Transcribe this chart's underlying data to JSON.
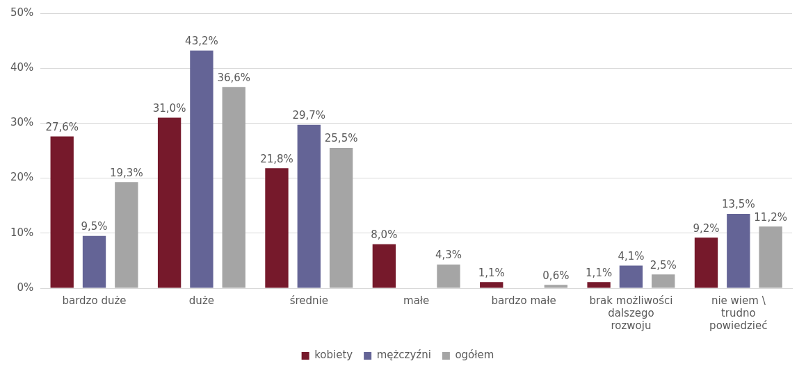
{
  "chart_data": {
    "type": "bar",
    "categories": [
      "bardzo duże",
      "duże",
      "średnie",
      "małe",
      "bardzo małe",
      "brak możliwości\ndalszego\nrozwoju",
      "nie wiem \\\ntrudno\npowiedzieć"
    ],
    "series": [
      {
        "name": "kobiety",
        "color": "#76192b",
        "values": [
          27.6,
          31.0,
          21.8,
          8.0,
          1.1,
          1.1,
          9.2
        ],
        "value_labels": [
          "27,6%",
          "31,0%",
          "21,8%",
          "8,0%",
          "1,1%",
          "1,1%",
          "9,2%"
        ]
      },
      {
        "name": "mężczyźni",
        "color": "#646496",
        "values": [
          9.5,
          43.2,
          29.7,
          null,
          null,
          4.1,
          13.5
        ],
        "value_labels": [
          "9,5%",
          "43,2%",
          "29,7%",
          null,
          null,
          "4,1%",
          "13,5%"
        ]
      },
      {
        "name": "ogółem",
        "color": "#a5a5a5",
        "values": [
          19.3,
          36.6,
          25.5,
          4.3,
          0.6,
          2.5,
          11.2
        ],
        "value_labels": [
          "19,3%",
          "36,6%",
          "25,5%",
          "4,3%",
          "0,6%",
          "2,5%",
          "11,2%"
        ]
      }
    ],
    "ylim": [
      0,
      50
    ],
    "yticks": [
      {
        "value": 0,
        "label": "0%"
      },
      {
        "value": 10,
        "label": "10%"
      },
      {
        "value": 20,
        "label": "20%"
      },
      {
        "value": 30,
        "label": "30%"
      },
      {
        "value": 40,
        "label": "40%"
      },
      {
        "value": 50,
        "label": "50%"
      }
    ],
    "grid": "y",
    "legend": "bottom"
  }
}
